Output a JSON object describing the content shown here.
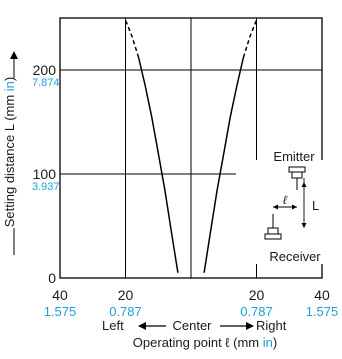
{
  "chart_data": {
    "type": "line",
    "xlabel": "Operating point ℓ (mm in)",
    "xlabel_parts": [
      "Operating point ℓ (mm ",
      "in",
      ")"
    ],
    "ylabel": "Setting distance L (mm in)",
    "ylabel_parts": [
      "Setting distance L (mm ",
      "in",
      ")"
    ],
    "xlim": [
      -40,
      40
    ],
    "ylim": [
      0,
      250
    ],
    "grid": true,
    "x_ticks": [
      {
        "value": -40,
        "label": "40",
        "sub": "1.575"
      },
      {
        "value": -20,
        "label": "20",
        "sub": "0.787"
      },
      {
        "value": 0,
        "label": "",
        "sub": ""
      },
      {
        "value": 20,
        "label": "20",
        "sub": "0.787"
      },
      {
        "value": 40,
        "label": "40",
        "sub": "1.575"
      }
    ],
    "y_ticks": [
      {
        "value": 0,
        "label": "0",
        "sub": ""
      },
      {
        "value": 100,
        "label": "100",
        "sub": "3.937"
      },
      {
        "value": 200,
        "label": "200",
        "sub": "7.874"
      }
    ],
    "direction_labels": {
      "left": "Left",
      "center": "Center",
      "right": "Right"
    },
    "series": [
      {
        "side": "left",
        "x": [
          -4,
          -6,
          -8,
          -10,
          -12,
          -14,
          -16,
          -18,
          -20
        ],
        "y": [
          5,
          45,
          85,
          120,
          155,
          185,
          212,
          232,
          248
        ],
        "dashed_from_y": 215
      },
      {
        "side": "right",
        "x": [
          4,
          6,
          8,
          10,
          12,
          14,
          16,
          18,
          20
        ],
        "y": [
          5,
          45,
          85,
          120,
          155,
          185,
          212,
          232,
          248
        ],
        "dashed_from_y": 215
      }
    ],
    "inset": {
      "emitter_label": "Emitter",
      "receiver_label": "Receiver",
      "l_label": "ℓ",
      "L_label": "L"
    }
  },
  "colors": {
    "accent": "#1ba0d8",
    "text": "#1a1a1a",
    "line": "#000000"
  }
}
